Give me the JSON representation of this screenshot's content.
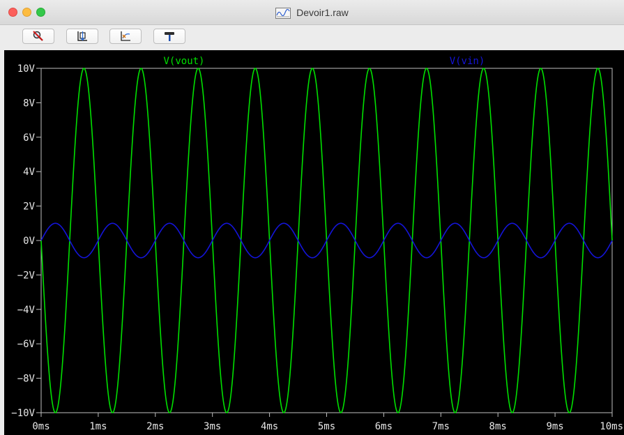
{
  "window": {
    "title": "Devoir1.raw"
  },
  "toolbar": {
    "buttons": [
      {
        "name": "zoom-cancel-button",
        "icon": "zoom-cancel-icon"
      },
      {
        "name": "autorange-button",
        "icon": "autorange-icon"
      },
      {
        "name": "pan-button",
        "icon": "pan-icon"
      },
      {
        "name": "hammer-button",
        "icon": "hammer-icon"
      }
    ]
  },
  "colors": {
    "vout": "#00e000",
    "vin": "#1414d8",
    "background": "#000000",
    "axis": "#bfbfbf"
  },
  "chart_data": {
    "type": "line",
    "xlabel": "",
    "ylabel": "",
    "x_unit": "ms",
    "y_unit": "V",
    "xlim": [
      0,
      10
    ],
    "ylim": [
      -10,
      10
    ],
    "x_ticks": [
      "0ms",
      "1ms",
      "2ms",
      "3ms",
      "4ms",
      "5ms",
      "6ms",
      "7ms",
      "8ms",
      "9ms",
      "10ms"
    ],
    "y_ticks": [
      "10V",
      "8V",
      "6V",
      "4V",
      "2V",
      "0V",
      "-2V",
      "-4V",
      "-6V",
      "-8V",
      "-10V"
    ],
    "grid": false,
    "legend": "top",
    "series": [
      {
        "name": "V(vout)",
        "function": "-amplitude*sin(2*pi*frequency*t)",
        "amplitude": 10,
        "frequency_khz": 1,
        "color": "#00e000"
      },
      {
        "name": "V(vin)",
        "function": "amplitude*sin(2*pi*frequency*t)",
        "amplitude": 1,
        "frequency_khz": 1,
        "color": "#1414d8"
      }
    ]
  }
}
